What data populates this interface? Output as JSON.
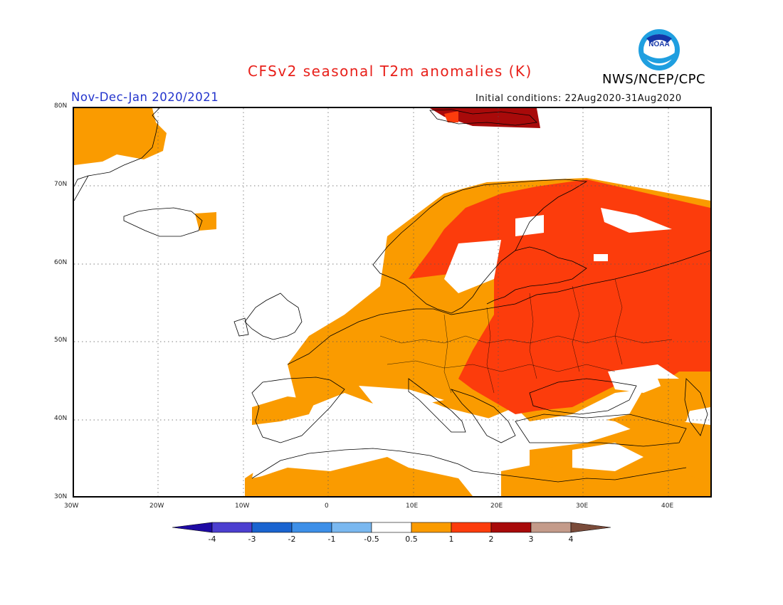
{
  "title": "CFSv2 seasonal T2m anomalies (K)",
  "period": "Nov-Dec-Jan 2020/2021",
  "initial_conditions": "Initial conditions: 22Aug2020-31Aug2020",
  "agency": "NWS/NCEP/CPC",
  "logo_text": "NOAA",
  "map": {
    "lat_labels": [
      "80N",
      "70N",
      "60N",
      "50N",
      "40N",
      "30N"
    ],
    "lon_labels": [
      "30W",
      "20W",
      "10W",
      "0",
      "10E",
      "20E",
      "30E",
      "40E"
    ],
    "lon_range": [
      -30,
      45
    ],
    "lat_range": [
      30,
      80
    ]
  },
  "legend": {
    "tick_labels": [
      "-4",
      "-3",
      "-2",
      "-1",
      "-0.5",
      "0.5",
      "1",
      "2",
      "3",
      "4"
    ],
    "colors": [
      "#1e0aa3",
      "#4c3fd0",
      "#1a64d0",
      "#3d8fe8",
      "#7ab8f0",
      "#ffffff",
      "#fa9b00",
      "#fc3c0c",
      "#a80a0a",
      "#c49b8a",
      "#7a4b3a"
    ]
  }
}
